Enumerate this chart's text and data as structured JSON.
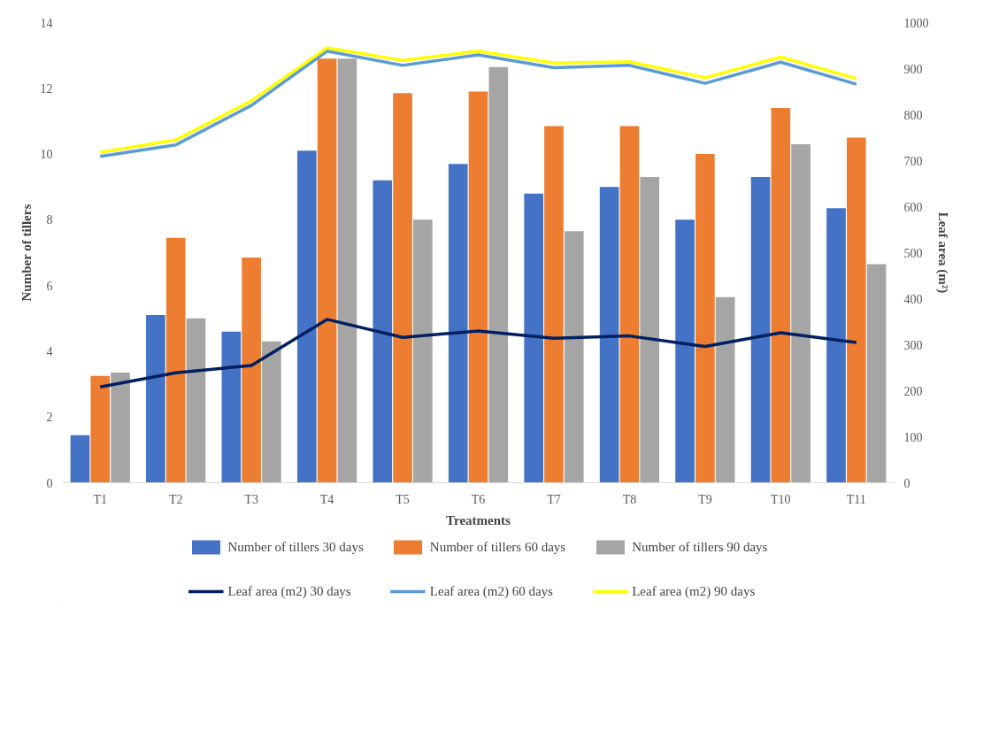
{
  "chart_data": {
    "type": "bar",
    "xlabel": "Treatments",
    "ylabel": "Number of tillers",
    "y2label": "Leaf area (m²)",
    "categories": [
      "T1",
      "T2",
      "T3",
      "T4",
      "T5",
      "T6",
      "T7",
      "T8",
      "T9",
      "T10",
      "T11"
    ],
    "ylim": [
      0,
      14
    ],
    "yticks": [
      0,
      2,
      4,
      6,
      8,
      10,
      12,
      14
    ],
    "y2lim": [
      0,
      1000
    ],
    "y2ticks": [
      0,
      100,
      200,
      300,
      400,
      500,
      600,
      700,
      800,
      900,
      1000
    ],
    "legend": "bottom",
    "series": [
      {
        "name": "Number of tillers 30 days",
        "color": "#4472c4",
        "values": [
          1.45,
          5.1,
          4.6,
          10.1,
          9.2,
          9.7,
          8.8,
          9.0,
          8.0,
          9.3,
          8.35
        ]
      },
      {
        "name": "Number of tillers 60 days",
        "color": "#ed7d31",
        "values": [
          3.25,
          7.45,
          6.85,
          12.9,
          11.85,
          11.9,
          10.85,
          10.85,
          10.0,
          11.4,
          10.5
        ]
      },
      {
        "name": "Number of tillers 90 days",
        "color": "#a5a5a5",
        "values": [
          3.35,
          5.0,
          4.3,
          12.9,
          8.0,
          12.65,
          7.65,
          9.3,
          5.65,
          10.3,
          6.65
        ]
      },
      {
        "name": "Leaf area (m2) 30 days",
        "type": "line",
        "axis": "y2",
        "color": "#002060",
        "values": [
          208,
          239,
          255,
          355,
          316,
          330,
          314,
          319,
          296,
          326,
          305
        ]
      },
      {
        "name": "Leaf area (m2) 60 days",
        "type": "line",
        "axis": "y2",
        "color": "#5b9bd5",
        "values": [
          709,
          734,
          820,
          938,
          907,
          930,
          902,
          907,
          868,
          914,
          866
        ]
      },
      {
        "name": "Leaf area (m2) 90 days",
        "type": "line",
        "axis": "y2",
        "color": "#ffff00",
        "values": [
          718,
          745,
          830,
          945,
          918,
          938,
          912,
          915,
          880,
          925,
          878
        ]
      }
    ]
  }
}
